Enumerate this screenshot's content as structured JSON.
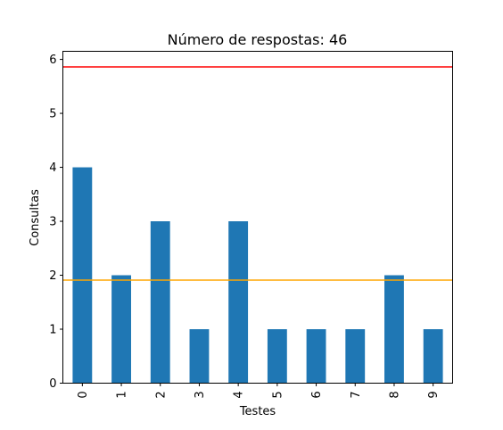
{
  "chart_data": {
    "type": "bar",
    "title": "Número de respostas: 46",
    "xlabel": "Testes",
    "ylabel": "Consultas",
    "categories": [
      "0",
      "1",
      "2",
      "3",
      "4",
      "5",
      "6",
      "7",
      "8",
      "9"
    ],
    "values": [
      4,
      2,
      3,
      1,
      3,
      1,
      1,
      1,
      2,
      1
    ],
    "ylim": [
      0,
      6.15
    ],
    "yticks": [
      0,
      1,
      2,
      3,
      4,
      5,
      6
    ],
    "bar_color": "#1f77b4",
    "grid": false,
    "reference_lines": [
      {
        "y": 5.86,
        "color": "#ff0000"
      },
      {
        "y": 1.91,
        "color": "#ffa500"
      }
    ]
  }
}
